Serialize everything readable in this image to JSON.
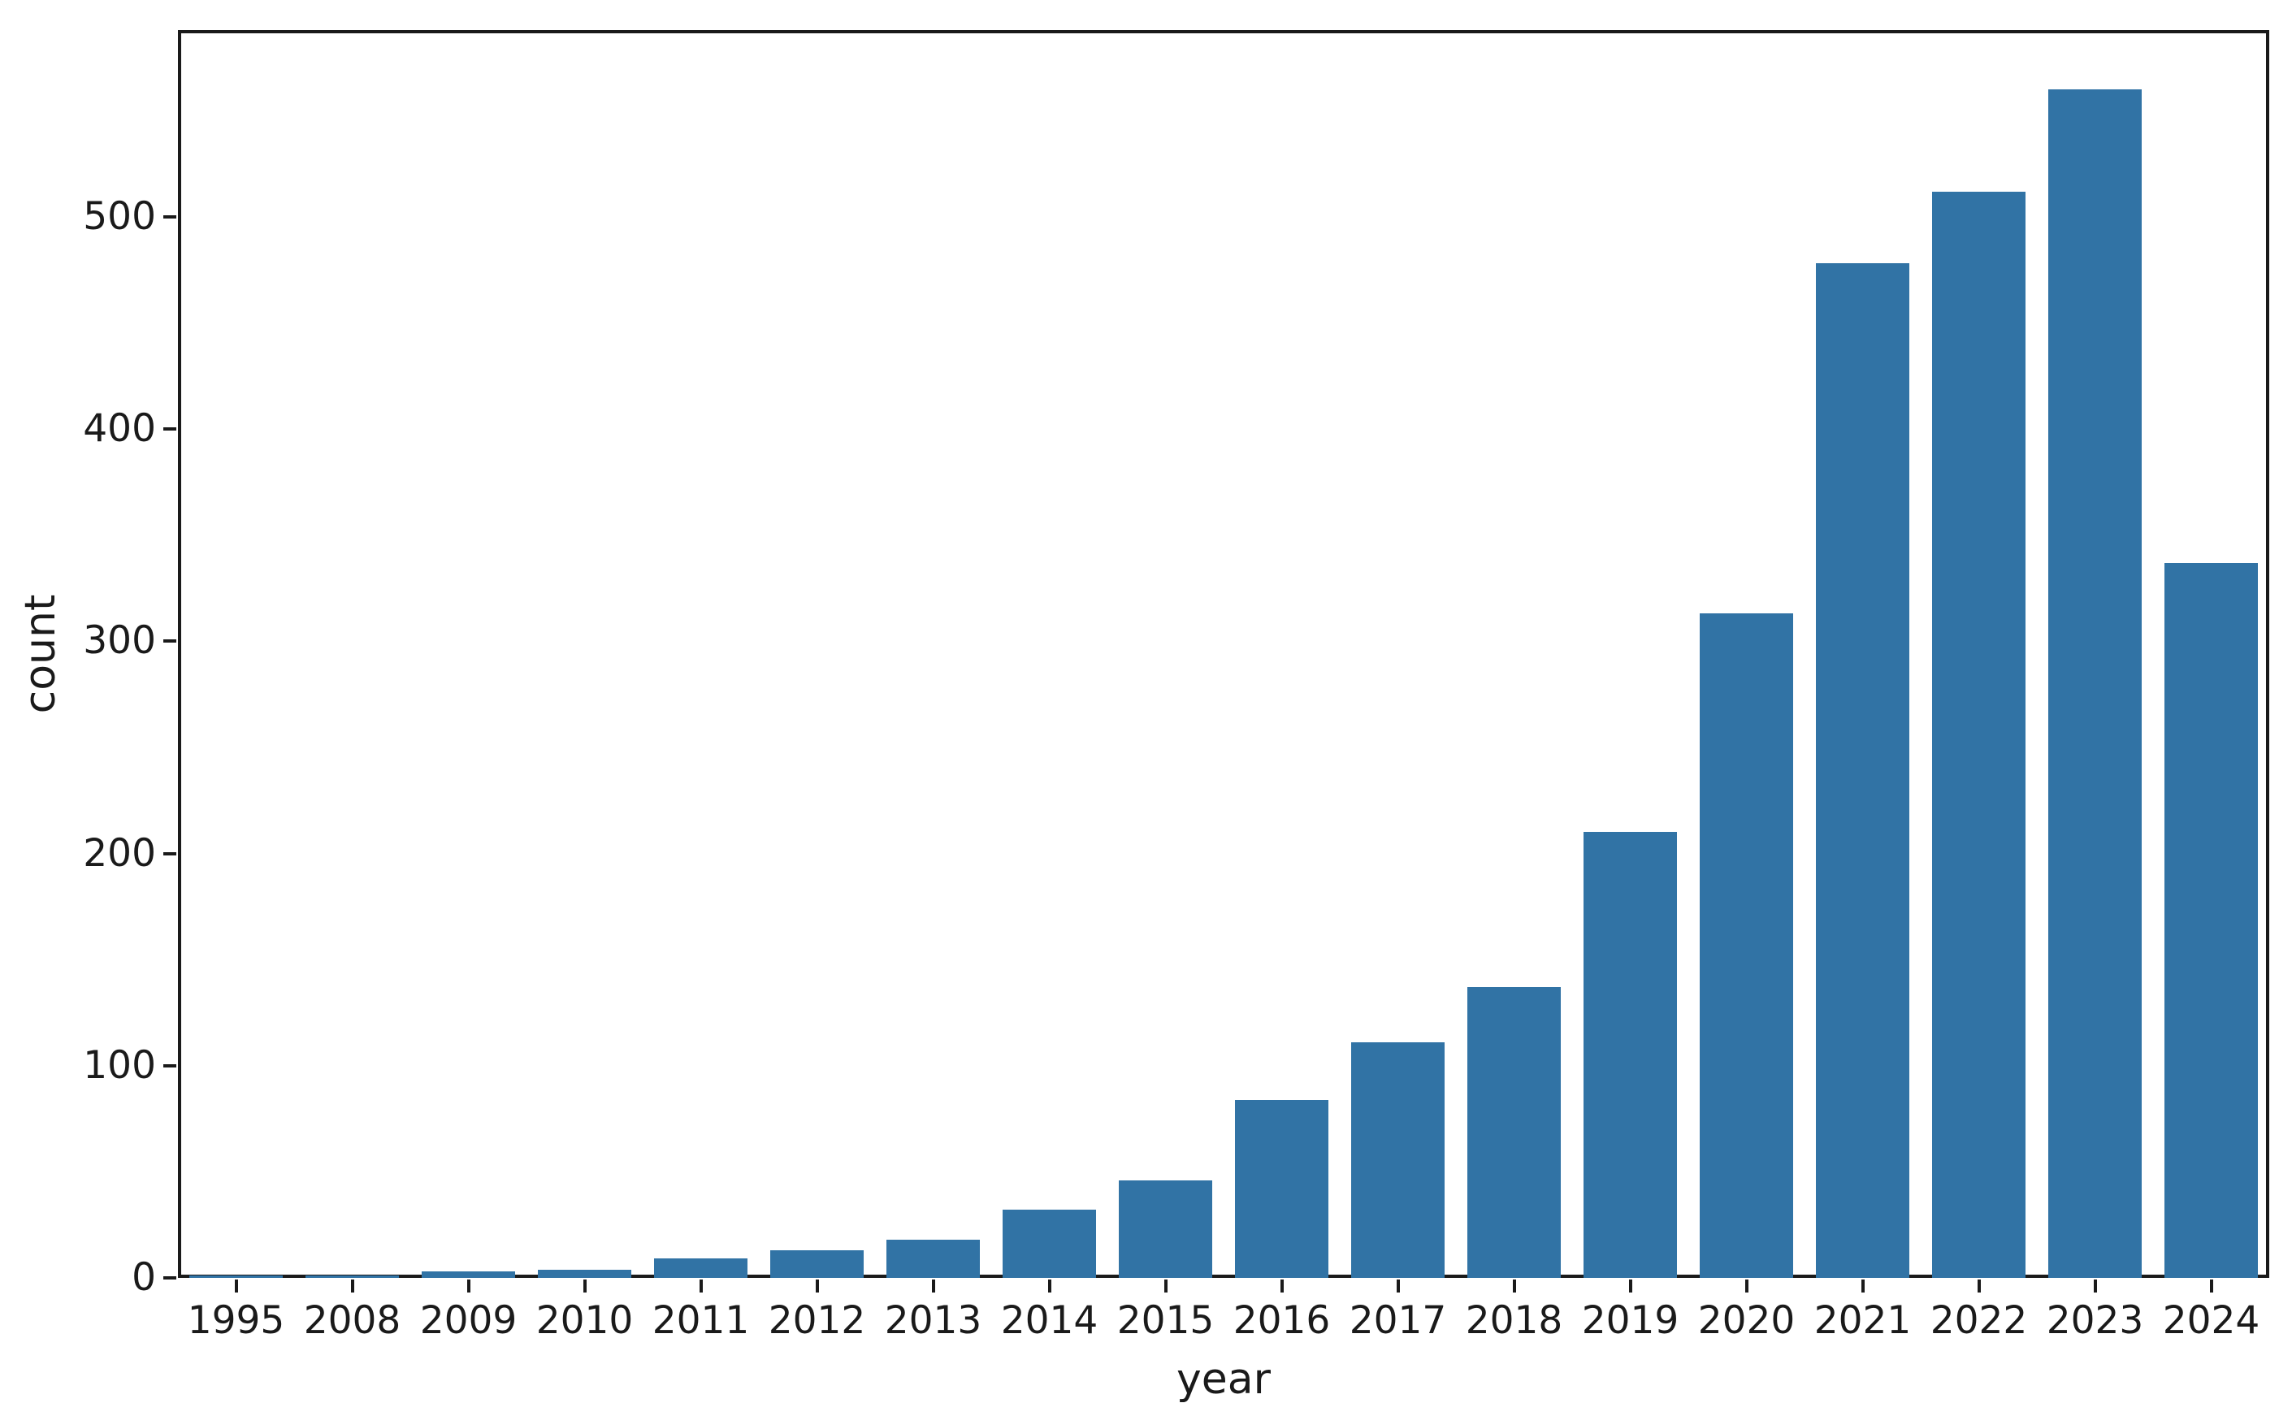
{
  "chart_data": {
    "type": "bar",
    "xlabel": "year",
    "ylabel": "count",
    "categories": [
      "1995",
      "2008",
      "2009",
      "2010",
      "2011",
      "2012",
      "2013",
      "2014",
      "2015",
      "2016",
      "2017",
      "2018",
      "2019",
      "2020",
      "2021",
      "2022",
      "2023",
      "2024"
    ],
    "values": [
      1,
      1,
      3,
      4,
      9,
      13,
      18,
      32,
      46,
      84,
      111,
      137,
      210,
      313,
      478,
      512,
      560,
      337
    ],
    "yticks": [
      0,
      100,
      200,
      300,
      400,
      500
    ],
    "ylim": [
      0,
      588
    ],
    "grid": false,
    "legend": "none",
    "bar_color": "#3173A5",
    "axis_color": "#1a1a1a",
    "text_color": "#1a1a1a",
    "background_color": "#ffffff"
  }
}
